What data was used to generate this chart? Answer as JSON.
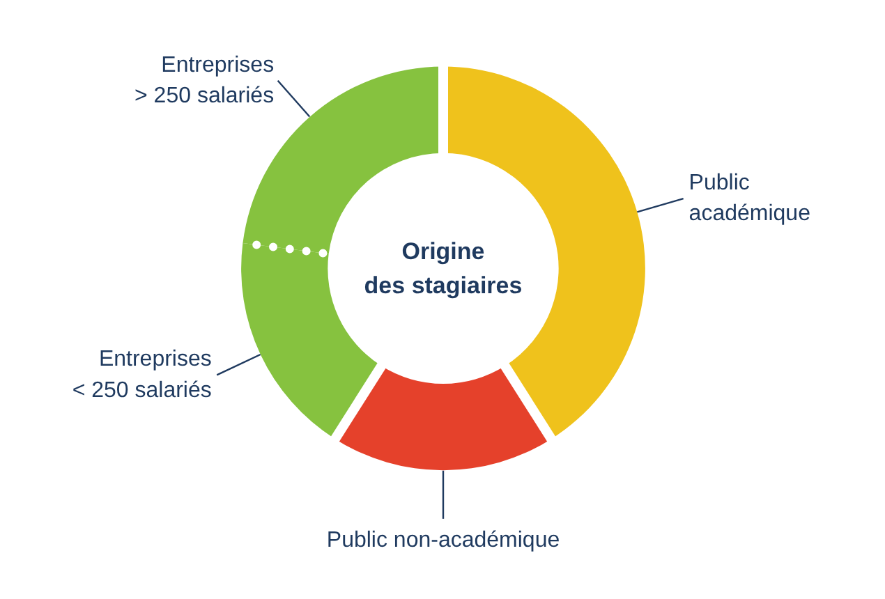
{
  "chart_data": {
    "type": "donut",
    "title": "Origine des stagiaires",
    "categories": [
      "Public académique",
      "Public non-académique",
      "Entreprises < 250 salariés",
      "Entreprises > 250 salariés"
    ],
    "values": [
      41,
      18,
      18,
      23
    ],
    "colors": [
      "#efc21c",
      "#e5412b",
      "#86c23f",
      "#86c23f"
    ]
  }
}
